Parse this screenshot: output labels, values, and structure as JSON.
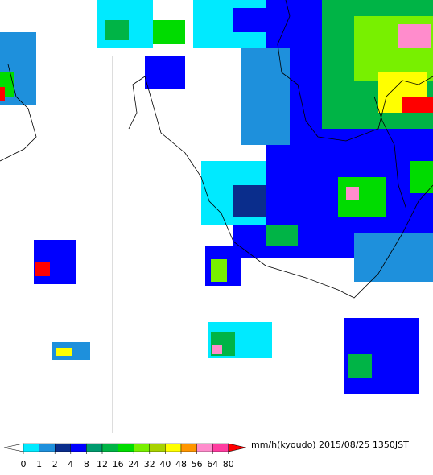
{
  "legend": {
    "unit": "mm/h(kyoudo)",
    "timestamp": "2015/08/25 1350JST",
    "levels": [
      0,
      1,
      2,
      4,
      8,
      12,
      16,
      24,
      32,
      40,
      48,
      56,
      64,
      80
    ],
    "colors": [
      "#00eaff",
      "#1e90dc",
      "#0a2d8c",
      "#0000ff",
      "#009a6e",
      "#00b446",
      "#00dc00",
      "#78f000",
      "#a8d200",
      "#ffff00",
      "#ff9600",
      "#ff8ccc",
      "#ff3ca0"
    ],
    "under_color": "#ffffff",
    "over_color": "#ff0000"
  }
}
